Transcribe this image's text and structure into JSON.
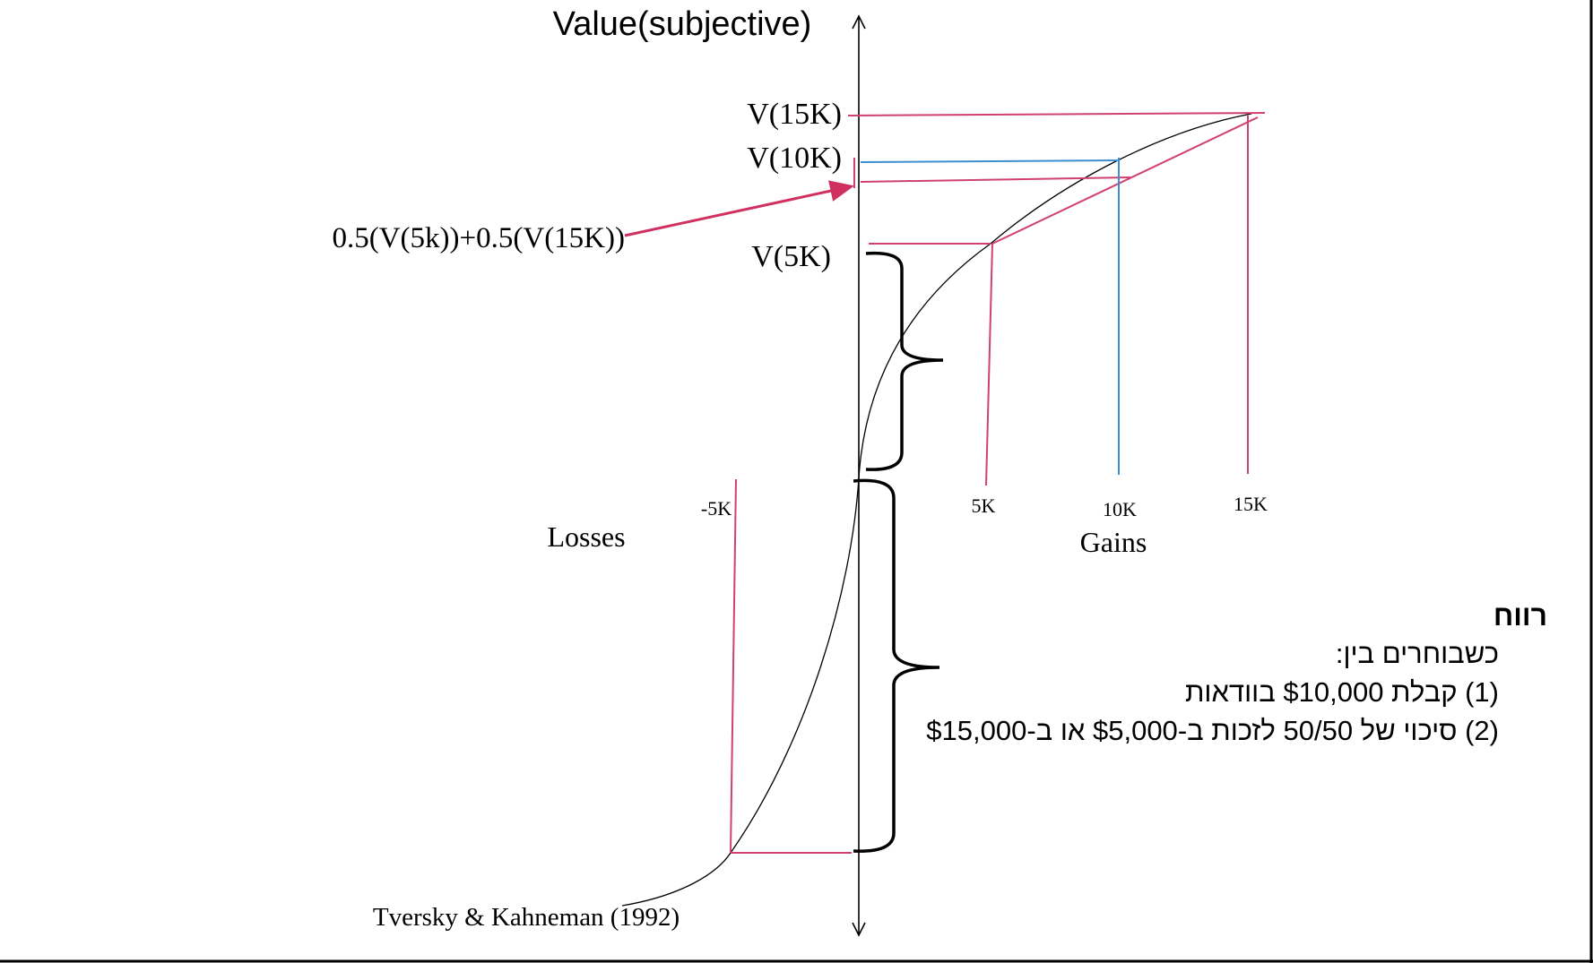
{
  "diagram": {
    "y_axis_label": "Value(subjective)",
    "value_labels": {
      "v15k": "V(15K)",
      "v10k": "V(10K)",
      "v5k": "V(5K)",
      "expected": "0.5(V(5k))+0.5(V(15K))"
    },
    "ticks": {
      "neg5k": "-5K",
      "pos5k": "5K",
      "pos10k": "10K",
      "pos15k": "15K"
    },
    "losses_label": "Losses",
    "gains_label": "Gains",
    "citation": "Tversky & Kahneman (1992)",
    "colors": {
      "guide_pink": "#d04070",
      "guide_blue": "#3a8fd0",
      "axis": "#000000"
    }
  },
  "text_box": {
    "heading": "רווח",
    "lines": [
      "כשבוחרים בין:",
      "(1) קבלת $10,000 בוודאות",
      "(2) סיכוי של 50/50 לזכות ב-$5,000 או ב-$15,000"
    ]
  }
}
